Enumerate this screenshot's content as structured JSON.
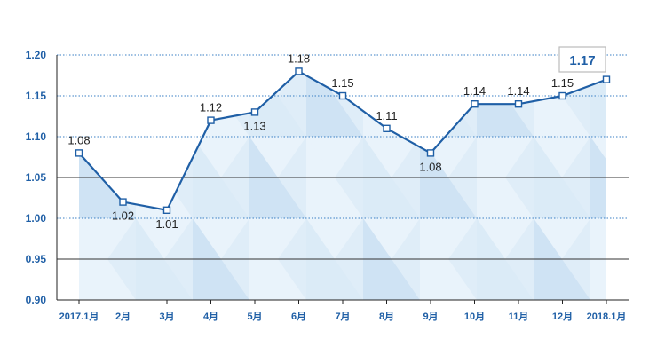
{
  "chart_data": {
    "type": "line",
    "categories": [
      "2017.1月",
      "2月",
      "3月",
      "4月",
      "5月",
      "6月",
      "7月",
      "8月",
      "9月",
      "10月",
      "11月",
      "12月",
      "2018.1月"
    ],
    "values": [
      1.08,
      1.02,
      1.01,
      1.12,
      1.13,
      1.18,
      1.15,
      1.11,
      1.08,
      1.14,
      1.14,
      1.15,
      1.17
    ],
    "data_labels": [
      "1.08",
      "1.02",
      "1.01",
      "1.12",
      "1.13",
      "1.18",
      "1.15",
      "1.11",
      "1.08",
      "1.14",
      "1.14",
      "1.15",
      "1.17"
    ],
    "label_positions": [
      "above",
      "below",
      "below",
      "above",
      "below",
      "above",
      "above",
      "above",
      "below",
      "above",
      "above",
      "above",
      "callout"
    ],
    "yticks": [
      "1.20",
      "1.15",
      "1.10",
      "1.05",
      "1.00",
      "0.95",
      "0.90"
    ],
    "ytick_values": [
      1.2,
      1.15,
      1.1,
      1.05,
      1.0,
      0.95,
      0.9
    ],
    "ylim": [
      0.9,
      1.2
    ],
    "gridlines": [
      {
        "value": 1.2,
        "style": "dotted"
      },
      {
        "value": 1.15,
        "style": "dotted"
      },
      {
        "value": 1.1,
        "style": "dotted"
      },
      {
        "value": 1.05,
        "style": "solid"
      },
      {
        "value": 1.0,
        "style": "dotted"
      },
      {
        "value": 0.95,
        "style": "solid"
      }
    ],
    "highlight_value": "1.17",
    "title": "",
    "xlabel": "",
    "ylabel": "",
    "colors": {
      "line": "#1f5fa6",
      "tick_text": "#1f5fa6",
      "dotted_grid": "#3a7fc4",
      "solid_grid": "#333333",
      "area_light": "#e9f3fb",
      "area_mid": "#cfe3f4",
      "area_dark": "#b9d5ee",
      "callout_border": "#bbbbbb"
    }
  }
}
